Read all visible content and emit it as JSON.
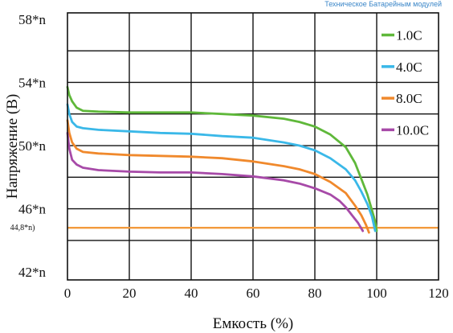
{
  "header": {
    "banner": "Техническое Батарейным модулей"
  },
  "chart_data": {
    "type": "line",
    "xlabel": "Емкость (%)",
    "ylabel": "Напряжение (В)",
    "xlim": [
      0,
      120
    ],
    "ylim": [
      41.5,
      58.4
    ],
    "x_ticks": [
      "0",
      "20",
      "40",
      "60",
      "80",
      "100",
      "120"
    ],
    "y_ticks": [
      {
        "value": 42,
        "label": "42*n"
      },
      {
        "value": 44.8,
        "label": "44,8*n)"
      },
      {
        "value": 46,
        "label": "46*n"
      },
      {
        "value": 50,
        "label": "50*n"
      },
      {
        "value": 54,
        "label": "54*n"
      },
      {
        "value": 58,
        "label": "58*n"
      }
    ],
    "grid": true,
    "legend_position": "top-right",
    "reference_line": {
      "y": 44.8,
      "color": "#f39a3c"
    },
    "series": [
      {
        "name": "1.0C",
        "color": "#5fb83a",
        "points": [
          [
            0,
            53.7
          ],
          [
            0.6,
            53.2
          ],
          [
            1.5,
            52.8
          ],
          [
            3,
            52.4
          ],
          [
            5,
            52.2
          ],
          [
            10,
            52.15
          ],
          [
            20,
            52.1
          ],
          [
            30,
            52.1
          ],
          [
            40,
            52.1
          ],
          [
            50,
            52.0
          ],
          [
            60,
            51.9
          ],
          [
            70,
            51.7
          ],
          [
            75,
            51.5
          ],
          [
            80,
            51.2
          ],
          [
            85,
            50.7
          ],
          [
            90,
            49.9
          ],
          [
            93,
            48.9
          ],
          [
            95,
            47.9
          ],
          [
            97,
            46.9
          ],
          [
            98.5,
            45.9
          ],
          [
            99.5,
            45.2
          ],
          [
            100,
            44.6
          ]
        ]
      },
      {
        "name": "4.0C",
        "color": "#3ab8e8",
        "points": [
          [
            0,
            52.6
          ],
          [
            0.6,
            52.0
          ],
          [
            1.5,
            51.5
          ],
          [
            3,
            51.2
          ],
          [
            5,
            51.1
          ],
          [
            10,
            51.0
          ],
          [
            20,
            50.9
          ],
          [
            30,
            50.8
          ],
          [
            40,
            50.75
          ],
          [
            50,
            50.6
          ],
          [
            60,
            50.5
          ],
          [
            70,
            50.2
          ],
          [
            75,
            50.0
          ],
          [
            80,
            49.7
          ],
          [
            85,
            49.2
          ],
          [
            90,
            48.5
          ],
          [
            93,
            47.8
          ],
          [
            95,
            47.1
          ],
          [
            97,
            46.3
          ],
          [
            98.5,
            45.5
          ],
          [
            99.5,
            44.6
          ]
        ]
      },
      {
        "name": "8.0C",
        "color": "#f0892c",
        "points": [
          [
            0,
            51.6
          ],
          [
            0.6,
            50.8
          ],
          [
            1.5,
            50.2
          ],
          [
            3,
            49.8
          ],
          [
            5,
            49.6
          ],
          [
            10,
            49.5
          ],
          [
            20,
            49.4
          ],
          [
            30,
            49.35
          ],
          [
            40,
            49.3
          ],
          [
            50,
            49.2
          ],
          [
            60,
            49.0
          ],
          [
            70,
            48.7
          ],
          [
            75,
            48.5
          ],
          [
            80,
            48.2
          ],
          [
            85,
            47.7
          ],
          [
            90,
            47.0
          ],
          [
            93,
            46.2
          ],
          [
            95,
            45.6
          ],
          [
            96.5,
            45.0
          ],
          [
            97.5,
            44.5
          ]
        ]
      },
      {
        "name": "10.0C",
        "color": "#a74aa8",
        "points": [
          [
            0,
            50.8
          ],
          [
            0.6,
            49.8
          ],
          [
            1.5,
            49.1
          ],
          [
            3,
            48.8
          ],
          [
            5,
            48.6
          ],
          [
            10,
            48.45
          ],
          [
            20,
            48.35
          ],
          [
            30,
            48.3
          ],
          [
            40,
            48.3
          ],
          [
            50,
            48.2
          ],
          [
            60,
            48.05
          ],
          [
            70,
            47.8
          ],
          [
            75,
            47.6
          ],
          [
            80,
            47.3
          ],
          [
            85,
            46.9
          ],
          [
            88,
            46.5
          ],
          [
            90,
            46.1
          ],
          [
            92,
            45.6
          ],
          [
            94,
            45.1
          ],
          [
            95.5,
            44.6
          ]
        ]
      }
    ]
  }
}
